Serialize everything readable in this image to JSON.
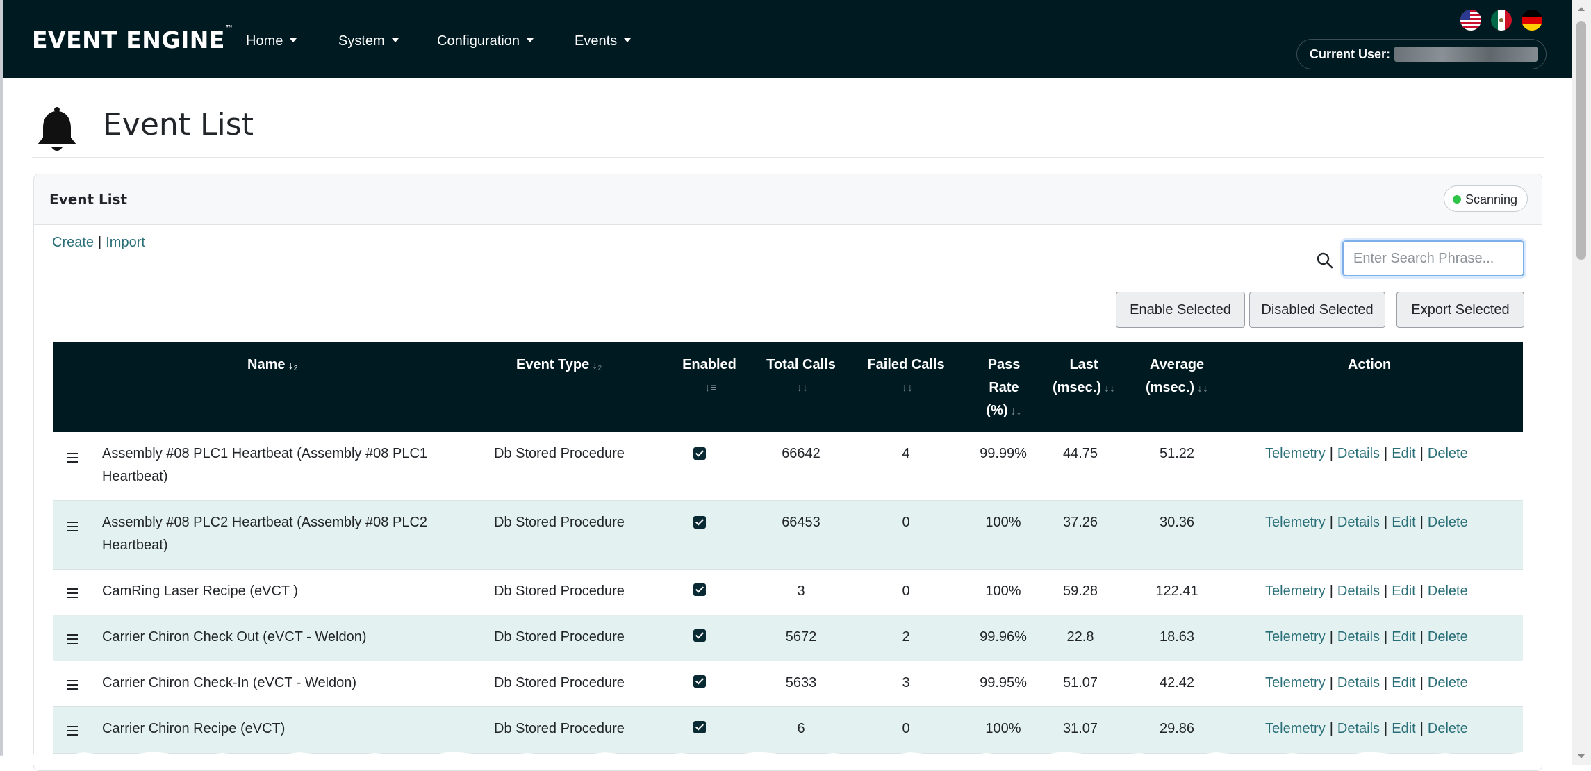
{
  "app": {
    "brand": "EVENT ENGINE",
    "brand_tm": "™",
    "nav": [
      "Home",
      "System",
      "Configuration",
      "Events"
    ],
    "flags": [
      "us-flag-icon",
      "mx-flag-icon",
      "de-flag-icon"
    ],
    "current_user_label": "Current User:"
  },
  "page": {
    "title": "Event List",
    "icon": "bell-icon"
  },
  "card": {
    "title": "Event List",
    "status": "Scanning",
    "status_color": "#2ec44a",
    "create_link": "Create",
    "separator": "|",
    "import_link": "Import",
    "search_placeholder": "Enter Search Phrase...",
    "buttons": {
      "enable": "Enable Selected",
      "disable": "Disabled Selected",
      "export": "Export Selected"
    }
  },
  "table": {
    "headers": {
      "name": "Name",
      "event_type": "Event Type",
      "enabled": "Enabled",
      "total_calls": "Total Calls",
      "failed_calls": "Failed Calls",
      "pass_rate_1": "Pass",
      "pass_rate_2": "Rate",
      "pass_rate_3": "(%)",
      "last_1": "Last",
      "last_2": "(msec.)",
      "average_1": "Average",
      "average_2": "(msec.)",
      "action": "Action"
    },
    "action_labels": [
      "Telemetry",
      "Details",
      "Edit",
      "Delete"
    ],
    "rows": [
      {
        "name_1": "Assembly #08 PLC1 Heartbeat (Assembly #08 PLC1",
        "name_2": "Heartbeat)",
        "type": "Db Stored Procedure",
        "enabled": true,
        "total": "66642",
        "failed": "4",
        "pass": "99.99%",
        "last": "44.75",
        "avg": "51.22"
      },
      {
        "name_1": "Assembly #08 PLC2 Heartbeat (Assembly #08 PLC2",
        "name_2": "Heartbeat)",
        "type": "Db Stored Procedure",
        "enabled": true,
        "total": "66453",
        "failed": "0",
        "pass": "100%",
        "last": "37.26",
        "avg": "30.36"
      },
      {
        "name_1": "CamRing Laser Recipe (eVCT )",
        "name_2": "",
        "type": "Db Stored Procedure",
        "enabled": true,
        "total": "3",
        "failed": "0",
        "pass": "100%",
        "last": "59.28",
        "avg": "122.41"
      },
      {
        "name_1": "Carrier Chiron Check Out (eVCT - Weldon)",
        "name_2": "",
        "type": "Db Stored Procedure",
        "enabled": true,
        "total": "5672",
        "failed": "2",
        "pass": "99.96%",
        "last": "22.8",
        "avg": "18.63"
      },
      {
        "name_1": "Carrier Chiron Check-In (eVCT - Weldon)",
        "name_2": "",
        "type": "Db Stored Procedure",
        "enabled": true,
        "total": "5633",
        "failed": "3",
        "pass": "99.95%",
        "last": "51.07",
        "avg": "42.42"
      },
      {
        "name_1": "Carrier Chiron Recipe (eVCT)",
        "name_2": "",
        "type": "Db Stored Procedure",
        "enabled": true,
        "total": "6",
        "failed": "0",
        "pass": "100%",
        "last": "31.07",
        "avg": "29.86"
      }
    ]
  }
}
